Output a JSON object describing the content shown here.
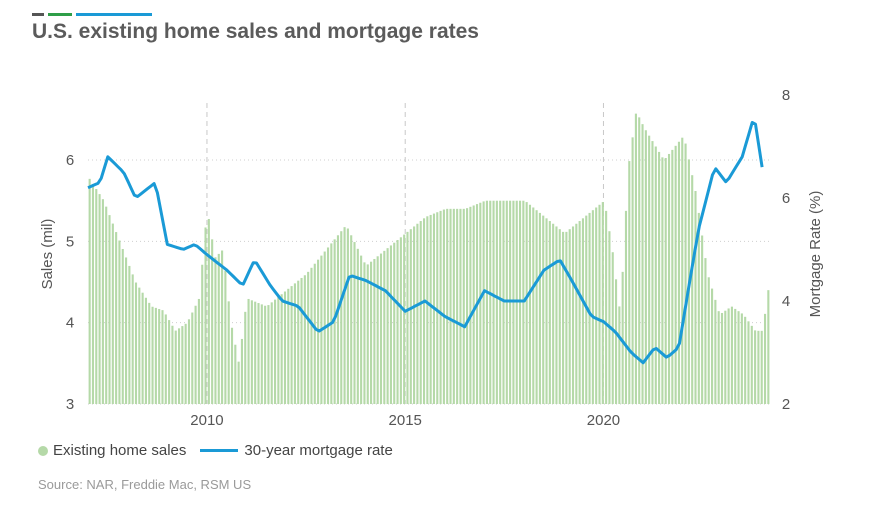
{
  "title": "U.S. existing home sales and mortgage rates",
  "source": "Source: NAR, Freddie Mac, RSM US",
  "colors": {
    "bars": "#b5d9a8",
    "line": "#1a9ad6",
    "accent1": "#555555",
    "accent2": "#2e9e48",
    "accent3": "#1a9ad6"
  },
  "chart_data": {
    "type": "bar+line",
    "title": "U.S. existing home sales and mortgage rates",
    "xlabel": "",
    "ylabel": "Sales (mil)",
    "ylabel_right": "Mortgage Rate (%)",
    "ylim": [
      3,
      6.8
    ],
    "ylim_right": [
      2,
      8
    ],
    "xlim": [
      2007,
      2024.2
    ],
    "x_ticks": [
      "2010",
      "2015",
      "2020"
    ],
    "y_ticks": [
      "3",
      "4",
      "5",
      "6"
    ],
    "y_ticks_right": [
      "2",
      "4",
      "6",
      "8"
    ],
    "grid": "dashed vertical at year ticks, dotted horizontal",
    "legend_position": "bottom-left",
    "series": [
      {
        "name": "Existing home sales",
        "type": "bar",
        "axis": "left",
        "anchors_x": [
          2007.0,
          2007.4,
          2007.8,
          2008.2,
          2008.6,
          2008.9,
          2009.2,
          2009.5,
          2009.8,
          2010.0,
          2010.2,
          2010.4,
          2010.6,
          2010.8,
          2011.0,
          2011.5,
          2012.0,
          2012.5,
          2013.0,
          2013.5,
          2014.0,
          2014.5,
          2015.0,
          2015.5,
          2016.0,
          2016.5,
          2017.0,
          2017.5,
          2018.0,
          2018.5,
          2019.0,
          2019.5,
          2020.0,
          2020.2,
          2020.4,
          2020.6,
          2020.8,
          2021.0,
          2021.5,
          2022.0,
          2022.3,
          2022.6,
          2022.9,
          2023.2,
          2023.5,
          2023.8,
          2024.0,
          2024.1
        ],
        "anchors_y": [
          5.8,
          5.5,
          5.0,
          4.5,
          4.2,
          4.15,
          3.9,
          4.0,
          4.3,
          5.4,
          4.8,
          4.9,
          4.0,
          3.5,
          4.3,
          4.2,
          4.4,
          4.6,
          4.9,
          5.2,
          4.7,
          4.9,
          5.1,
          5.3,
          5.4,
          5.4,
          5.5,
          5.5,
          5.5,
          5.3,
          5.1,
          5.3,
          5.5,
          4.9,
          4.1,
          5.9,
          6.6,
          6.4,
          6.0,
          6.3,
          5.6,
          4.6,
          4.1,
          4.2,
          4.1,
          3.9,
          3.9,
          4.4
        ]
      },
      {
        "name": "30-year mortgage rate",
        "type": "line",
        "axis": "right",
        "anchors_x": [
          2007.0,
          2007.3,
          2007.5,
          2007.9,
          2008.2,
          2008.7,
          2009.0,
          2009.4,
          2009.7,
          2010.0,
          2010.5,
          2010.9,
          2011.2,
          2011.6,
          2011.9,
          2012.3,
          2012.8,
          2013.2,
          2013.6,
          2014.0,
          2014.5,
          2015.0,
          2015.5,
          2016.0,
          2016.5,
          2017.0,
          2017.5,
          2018.0,
          2018.5,
          2018.9,
          2019.2,
          2019.7,
          2020.0,
          2020.3,
          2020.7,
          2021.0,
          2021.3,
          2021.6,
          2021.9,
          2022.2,
          2022.4,
          2022.8,
          2023.1,
          2023.5,
          2023.8,
          2024.0
        ],
        "anchors_y": [
          6.2,
          6.3,
          6.8,
          6.5,
          6.0,
          6.3,
          5.1,
          5.0,
          5.1,
          4.9,
          4.6,
          4.3,
          4.8,
          4.3,
          4.0,
          3.9,
          3.4,
          3.6,
          4.5,
          4.4,
          4.2,
          3.8,
          4.0,
          3.7,
          3.5,
          4.2,
          4.0,
          4.0,
          4.6,
          4.8,
          4.4,
          3.7,
          3.6,
          3.4,
          3.0,
          2.8,
          3.1,
          2.9,
          3.1,
          4.5,
          5.4,
          6.6,
          6.3,
          6.8,
          7.6,
          6.6
        ]
      }
    ]
  }
}
